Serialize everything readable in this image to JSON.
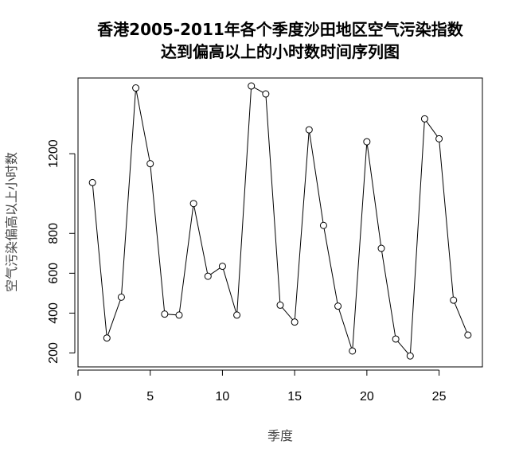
{
  "chart_data": {
    "type": "line",
    "title_line1": "香港2005-2011年各个季度沙田地区空气污染指数",
    "title_line2": "达到偏高以上的小时数时间序列图",
    "xlabel": "季度",
    "ylabel": "空气污染偏高以上小时数",
    "xlim": [
      0,
      28
    ],
    "ylim": [
      130,
      1580
    ],
    "xticks": [
      0,
      5,
      10,
      15,
      20,
      25
    ],
    "yticks": [
      200,
      400,
      600,
      800,
      1200
    ],
    "xtick_labels": [
      "0",
      "5",
      "10",
      "15",
      "20",
      "25"
    ],
    "ytick_labels": [
      "200",
      "400",
      "600",
      "800",
      "1200"
    ],
    "markers": "open-circle",
    "grid": false,
    "x": [
      1,
      2,
      3,
      4,
      5,
      6,
      7,
      8,
      9,
      10,
      11,
      12,
      13,
      14,
      15,
      16,
      17,
      18,
      19,
      20,
      21,
      22,
      23,
      24,
      25,
      26,
      27
    ],
    "y": [
      1055,
      275,
      480,
      1530,
      1150,
      395,
      390,
      950,
      585,
      635,
      390,
      1540,
      1500,
      440,
      355,
      1320,
      840,
      435,
      210,
      1260,
      725,
      270,
      185,
      1375,
      1275,
      465,
      290
    ]
  }
}
